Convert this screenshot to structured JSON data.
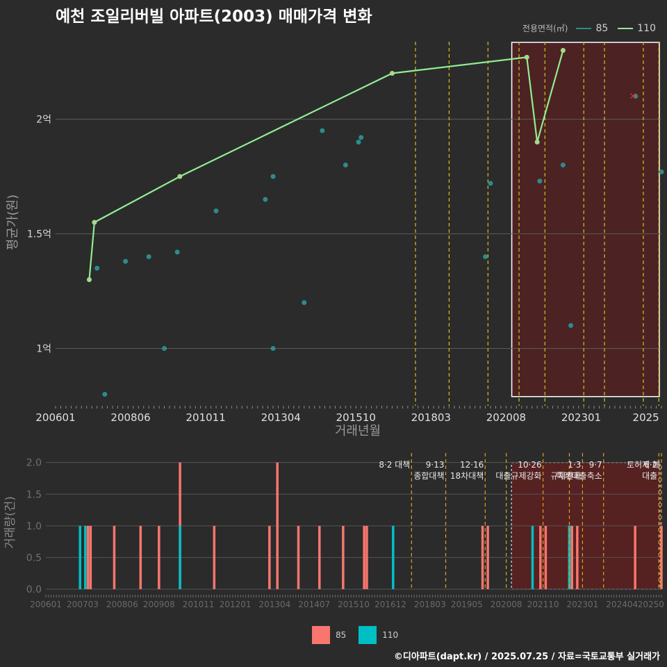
{
  "title": "예천 조일리버빌 아파트(2003) 매매가격 변화",
  "legend": {
    "title": "전용면적(㎡)",
    "items": [
      {
        "label": "85",
        "color": "#2e8b8b"
      },
      {
        "label": "110",
        "color": "#90ee90"
      }
    ]
  },
  "bar_legend": [
    {
      "label": "85",
      "color": "#f8766d"
    },
    {
      "label": "110",
      "color": "#00bfc4"
    }
  ],
  "source": "©디아파트(dapt.kr) / 2025.07.25 / 자료=국토교통부 실거래가",
  "chart_data": [
    {
      "type": "line",
      "title": "예천 조일리버빌 아파트(2003) 매매가격 변화",
      "xlabel": "거래년월",
      "ylabel": "평균가(원)",
      "xlim": [
        "2006-01",
        "2025-07"
      ],
      "ylim": [
        0.75,
        2.35
      ],
      "y_ticks": [
        1,
        1.5,
        2
      ],
      "y_tick_labels": [
        "1억",
        "1.5억",
        "2억"
      ],
      "x_tick_labels": [
        "200601",
        "200806",
        "201011",
        "201304",
        "201510",
        "201803",
        "202008",
        "202301",
        "2025"
      ],
      "highlight_range": [
        "2020-10",
        "2025-07"
      ],
      "policy_lines": [
        "2017-08",
        "2018-09",
        "2019-12",
        "2020-12",
        "2021-10",
        "2023-01",
        "2023-09",
        "2024-12",
        "2025-06"
      ],
      "series": [
        {
          "name": "85",
          "style": "points",
          "points": [
            [
              "2007-05",
              1.35
            ],
            [
              "2007-08",
              0.8
            ],
            [
              "2008-04",
              1.38
            ],
            [
              "2009-01",
              1.4
            ],
            [
              "2009-07",
              1.0
            ],
            [
              "2009-12",
              1.42
            ],
            [
              "2011-03",
              1.6
            ],
            [
              "2012-10",
              1.65
            ],
            [
              "2013-01",
              1.0
            ],
            [
              "2013-01",
              1.75
            ],
            [
              "2014-01",
              1.2
            ],
            [
              "2014-08",
              1.95
            ],
            [
              "2015-05",
              1.8
            ],
            [
              "2015-10",
              1.9
            ],
            [
              "2015-11",
              1.92
            ],
            [
              "2019-11",
              1.4
            ],
            [
              "2020-01",
              1.72
            ],
            [
              "2021-08",
              1.73
            ],
            [
              "2022-05",
              1.8
            ],
            [
              "2022-08",
              1.1
            ],
            [
              "2024-09",
              2.1
            ],
            [
              "2025-07",
              1.77
            ]
          ]
        },
        {
          "name": "110",
          "style": "line",
          "points": [
            [
              "2007-02",
              1.3
            ],
            [
              "2007-04",
              1.55
            ],
            [
              "2010-01",
              1.75
            ],
            [
              "2016-11",
              2.2
            ],
            [
              "2021-03",
              2.27
            ],
            [
              "2021-07",
              1.9
            ],
            [
              "2022-05",
              2.3
            ]
          ]
        }
      ],
      "annotation_marker": {
        "x": "2024-08",
        "y": 2.1,
        "symbol": "×"
      }
    },
    {
      "type": "bar",
      "ylabel": "거래량(건)",
      "ylim": [
        0,
        2.15
      ],
      "y_ticks": [
        0,
        0.5,
        1,
        1.5,
        2
      ],
      "y_tick_labels": [
        "0.0",
        "0.5",
        "1.0",
        "1.5",
        "2.0"
      ],
      "x_tick_labels": [
        "200601",
        "200703",
        "200806",
        "200908",
        "201011",
        "201201",
        "201304",
        "201407",
        "201510",
        "201612",
        "201803",
        "201905",
        "202008",
        "202110",
        "202301",
        "202404",
        "20250"
      ],
      "highlight_range": [
        "2020-10",
        "2025-07"
      ],
      "policy_annotations": [
        {
          "x": "2017-08",
          "text": "8·2 대책"
        },
        {
          "x": "2018-09",
          "text": "9·13\n종합대책"
        },
        {
          "x": "2019-12",
          "text": "12·16\n18차대책"
        },
        {
          "x": "2020-08",
          "text": ""
        },
        {
          "x": "2021-10",
          "text": "10·26\n대출규제강화"
        },
        {
          "x": "2022-08",
          "text": ""
        },
        {
          "x": "2023-01",
          "text": "1·3\n규제완화"
        },
        {
          "x": "2023-09",
          "text": "9·7\n특례대출축소"
        },
        {
          "x": "2025-06",
          "text": "6·2\n대출"
        },
        {
          "x": "2025-07",
          "text": "토허제 해"
        }
      ],
      "series": [
        {
          "name": "85",
          "bars": [
            [
              "2007-05",
              1
            ],
            [
              "2007-06",
              1
            ],
            [
              "2008-03",
              1
            ],
            [
              "2009-01",
              1
            ],
            [
              "2009-08",
              1
            ],
            [
              "2010-04",
              2
            ],
            [
              "2011-05",
              1
            ],
            [
              "2013-02",
              1
            ],
            [
              "2013-05",
              2
            ],
            [
              "2014-01",
              1
            ],
            [
              "2014-09",
              1
            ],
            [
              "2015-06",
              1
            ],
            [
              "2016-02",
              1
            ],
            [
              "2016-03",
              1
            ],
            [
              "2019-11",
              1
            ],
            [
              "2020-01",
              1
            ],
            [
              "2021-09",
              1
            ],
            [
              "2021-11",
              1
            ],
            [
              "2022-08",
              1
            ],
            [
              "2022-09",
              1
            ],
            [
              "2022-11",
              1
            ],
            [
              "2024-09",
              1
            ],
            [
              "2025-07",
              1
            ]
          ]
        },
        {
          "name": "110",
          "bars": [
            [
              "2007-02",
              1
            ],
            [
              "2007-04",
              1
            ],
            [
              "2010-04",
              1
            ],
            [
              "2017-01",
              1
            ],
            [
              "2021-06",
              1
            ],
            [
              "2022-08",
              1
            ]
          ]
        }
      ]
    }
  ]
}
